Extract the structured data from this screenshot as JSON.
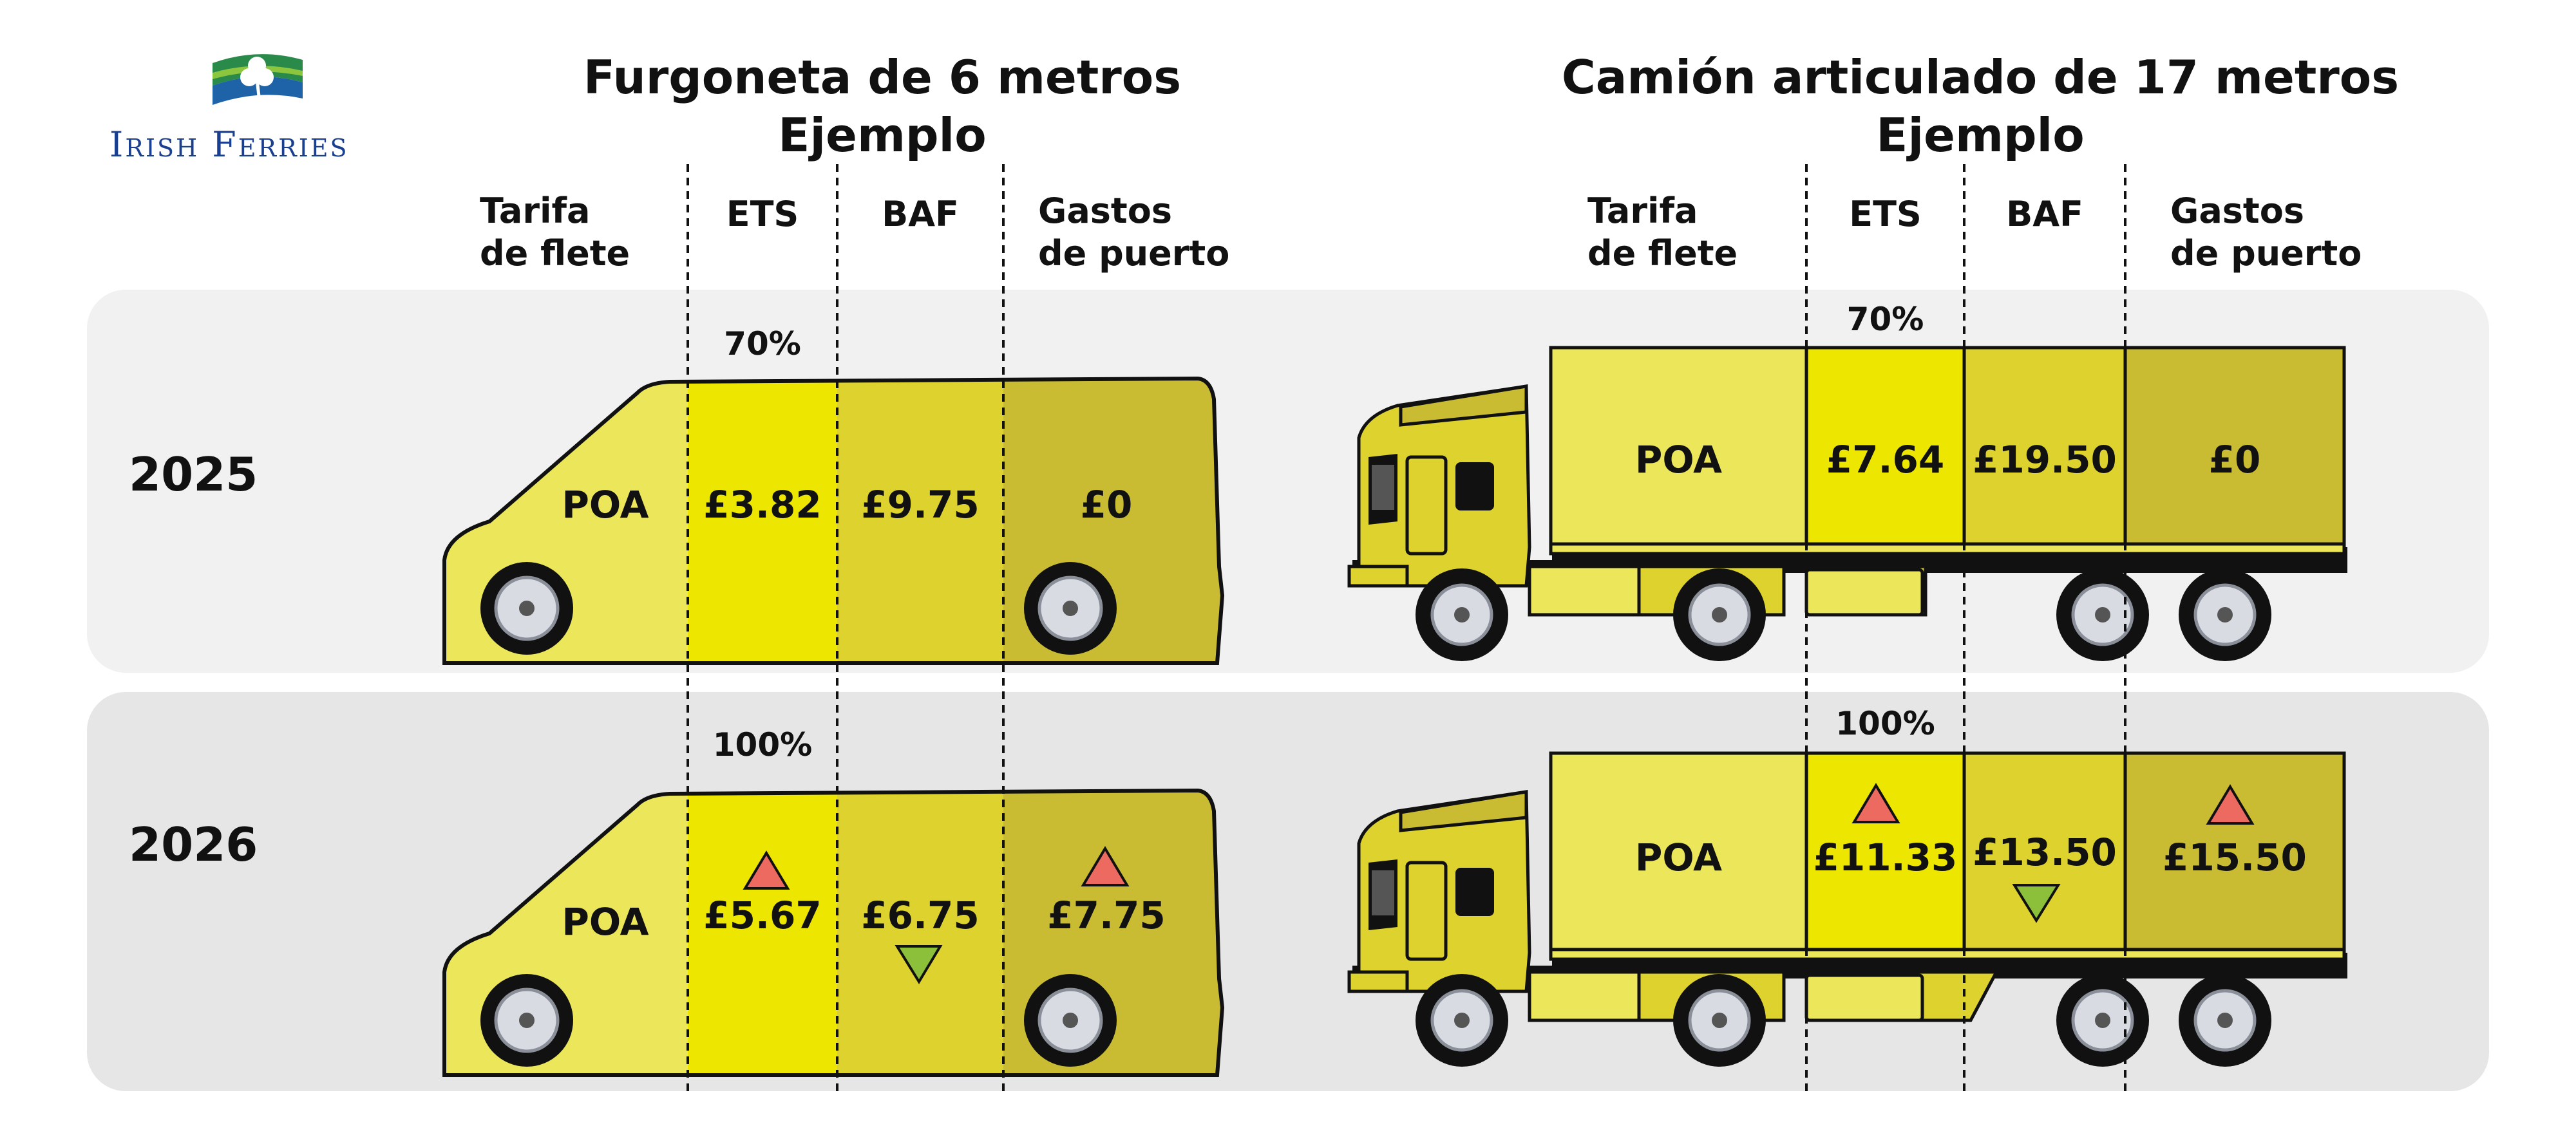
{
  "brand": {
    "name": "Irish Ferries"
  },
  "colors": {
    "freight": "#ebe65a",
    "ets": "#ede600",
    "baf": "#ddd22e",
    "port": "#c9bc32",
    "up": "#ec6a60",
    "down": "#8cbf3a"
  },
  "van": {
    "title": "Furgoneta de 6 metros",
    "subtitle": "Ejemplo"
  },
  "truck": {
    "title": "Camión articulado de 17 metros",
    "subtitle": "Ejemplo"
  },
  "columns": [
    {
      "label": "Tarifa",
      "label2": "de flete"
    },
    {
      "label": "ETS"
    },
    {
      "label": "BAF"
    },
    {
      "label": "Gastos",
      "label2": "de puerto"
    }
  ],
  "rows": [
    {
      "year": "2025",
      "ets_pct": "70%",
      "van": {
        "freight": "POA",
        "ets": "£3.82",
        "baf": "£9.75",
        "port": "£0"
      },
      "truck": {
        "freight": "POA",
        "ets": "£7.64",
        "baf": "£19.50",
        "port": "£0"
      }
    },
    {
      "year": "2026",
      "ets_pct": "100%",
      "van": {
        "freight": "POA",
        "ets": "£5.67",
        "ets_trend": "up",
        "baf": "£6.75",
        "baf_trend": "down",
        "port": "£7.75",
        "port_trend": "up"
      },
      "truck": {
        "freight": "POA",
        "ets": "£11.33",
        "ets_trend": "up",
        "baf": "£13.50",
        "baf_trend": "down",
        "port": "£15.50",
        "port_trend": "up"
      }
    }
  ]
}
